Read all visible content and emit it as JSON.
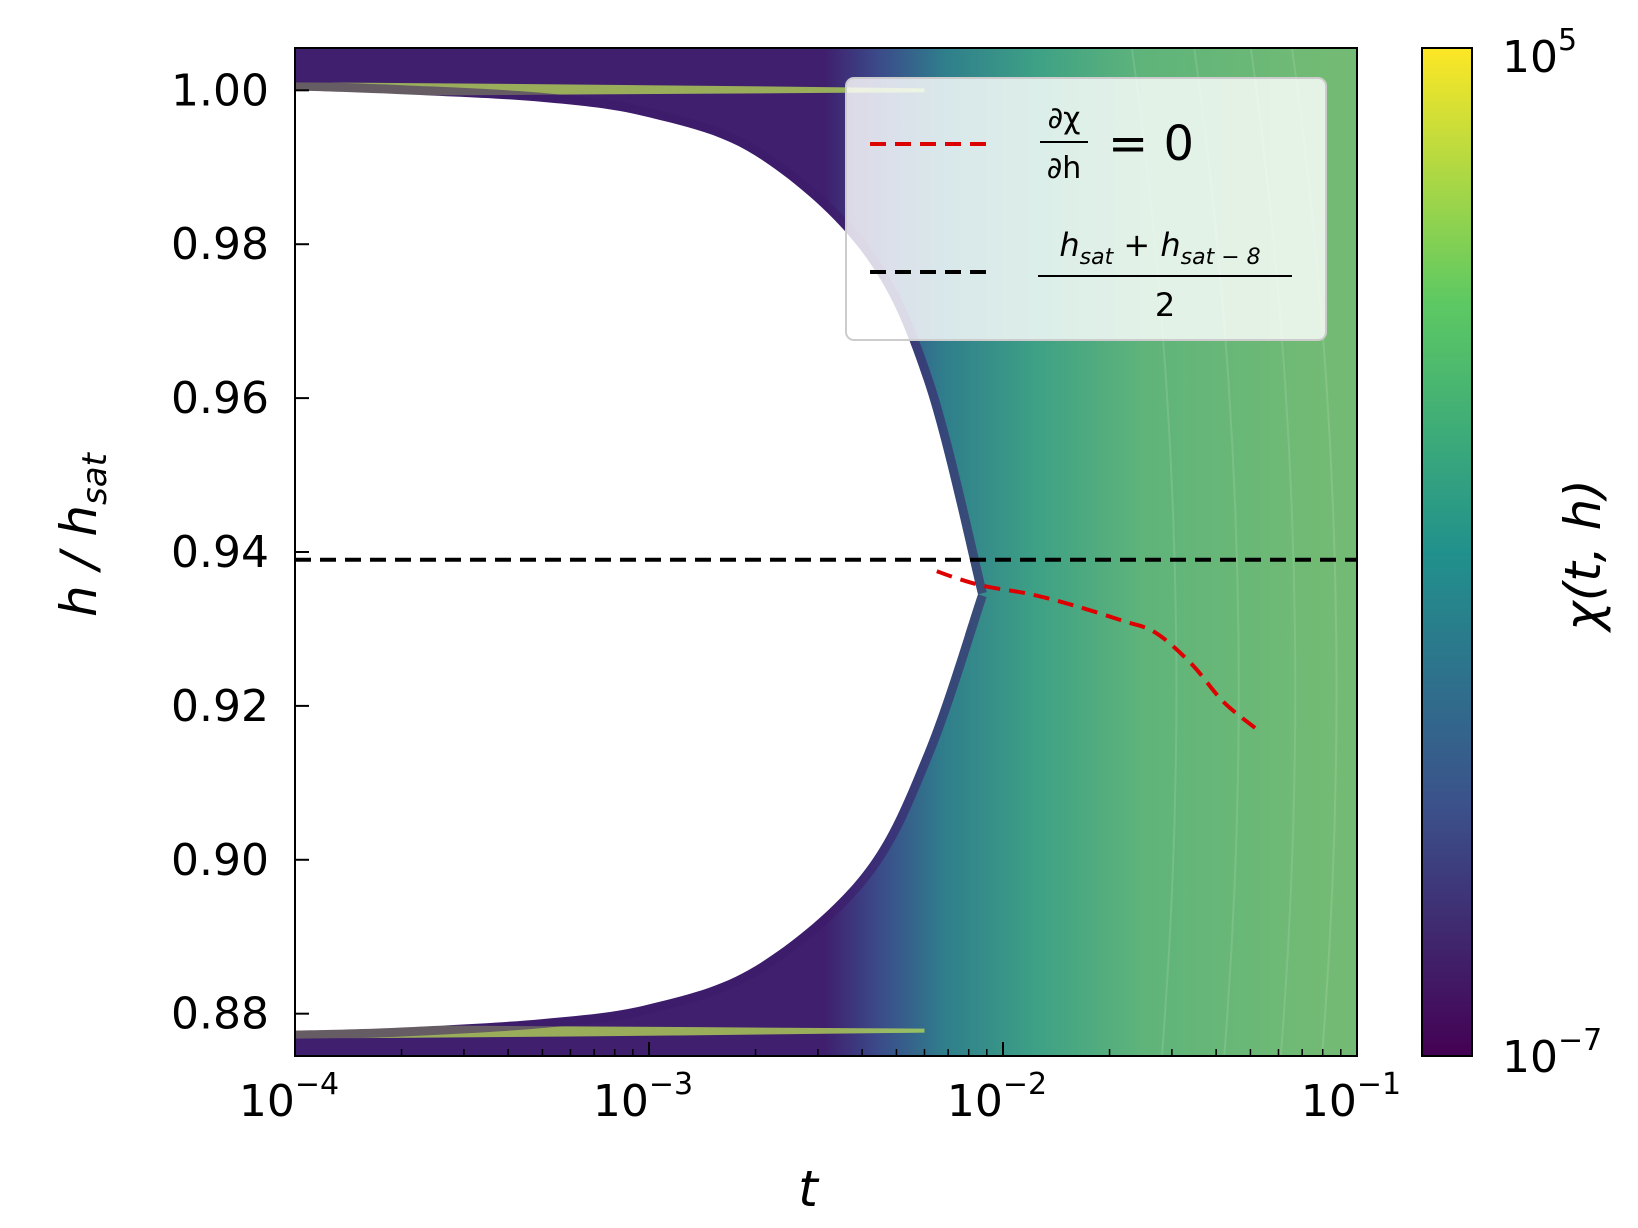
{
  "chart_data": {
    "type": "heatmap",
    "title": "",
    "xlabel": "t",
    "ylabel": {
      "main": "h / h",
      "sub": "sat"
    },
    "xscale": "log",
    "xlim": [
      0.0001,
      0.1
    ],
    "ylim": [
      0.8745,
      1.0055
    ],
    "x_ticks": [
      {
        "value": 0.0001,
        "base": "10",
        "exp": "−4"
      },
      {
        "value": 0.001,
        "base": "10",
        "exp": "−3"
      },
      {
        "value": 0.01,
        "base": "10",
        "exp": "−2"
      },
      {
        "value": 0.1,
        "base": "10",
        "exp": "−1"
      }
    ],
    "y_ticks": [
      {
        "value": 0.88,
        "label": "0.88"
      },
      {
        "value": 0.9,
        "label": "0.90"
      },
      {
        "value": 0.92,
        "label": "0.92"
      },
      {
        "value": 0.94,
        "label": "0.94"
      },
      {
        "value": 0.96,
        "label": "0.96"
      },
      {
        "value": 0.98,
        "label": "0.98"
      },
      {
        "value": 1.0,
        "label": "1.00"
      }
    ],
    "colorbar": {
      "label": "χ(t, h)",
      "scale": "log",
      "min": {
        "base": "10",
        "exp": "−7"
      },
      "max": {
        "base": "10",
        "exp": "5"
      },
      "colormap": [
        "#440154",
        "#3b528b",
        "#21918c",
        "#5ec962",
        "#fde725"
      ]
    },
    "boundary": {
      "description": "white (undefined) region bounded by contour edge",
      "points": [
        {
          "t": 0.0001,
          "h_top": 1.0,
          "h_bot": 0.8778
        },
        {
          "t": 0.0002,
          "h_top": 0.9995,
          "h_bot": 0.8782
        },
        {
          "t": 0.0005,
          "h_top": 0.9985,
          "h_bot": 0.8793
        },
        {
          "t": 0.001,
          "h_top": 0.9965,
          "h_bot": 0.8812
        },
        {
          "t": 0.002,
          "h_top": 0.9915,
          "h_bot": 0.8862
        },
        {
          "t": 0.004,
          "h_top": 0.979,
          "h_bot": 0.8982
        },
        {
          "t": 0.006,
          "h_top": 0.962,
          "h_bot": 0.914
        },
        {
          "t": 0.0085,
          "h_top": 0.9345,
          "h_bot": 0.9345
        }
      ]
    },
    "series": [
      {
        "name": "∂χ/∂h = 0",
        "style": "dashed",
        "color": "#dd0000",
        "points": [
          {
            "t": 0.0065,
            "h": 0.9375
          },
          {
            "t": 0.0075,
            "h": 0.9365
          },
          {
            "t": 0.009,
            "h": 0.9355
          },
          {
            "t": 0.012,
            "h": 0.9345
          },
          {
            "t": 0.016,
            "h": 0.933
          },
          {
            "t": 0.022,
            "h": 0.931
          },
          {
            "t": 0.027,
            "h": 0.9295
          },
          {
            "t": 0.034,
            "h": 0.9255
          },
          {
            "t": 0.042,
            "h": 0.9205
          },
          {
            "t": 0.052,
            "h": 0.917
          }
        ]
      },
      {
        "name": "(h_sat + h_sat−8) / 2",
        "style": "dashed",
        "color": "#000000",
        "points": [
          {
            "t": 0.0001,
            "h": 0.939
          },
          {
            "t": 0.1,
            "h": 0.939
          }
        ]
      }
    ],
    "legend": {
      "position": "upper-right",
      "entries": [
        {
          "num": "∂χ",
          "den": "∂h",
          "rhs": "= 0"
        },
        {
          "num_a": "h",
          "num_a_sub": "sat",
          "num_op": " + ",
          "num_b": "h",
          "num_b_sub": "sat − 8",
          "den": "2"
        }
      ]
    }
  }
}
